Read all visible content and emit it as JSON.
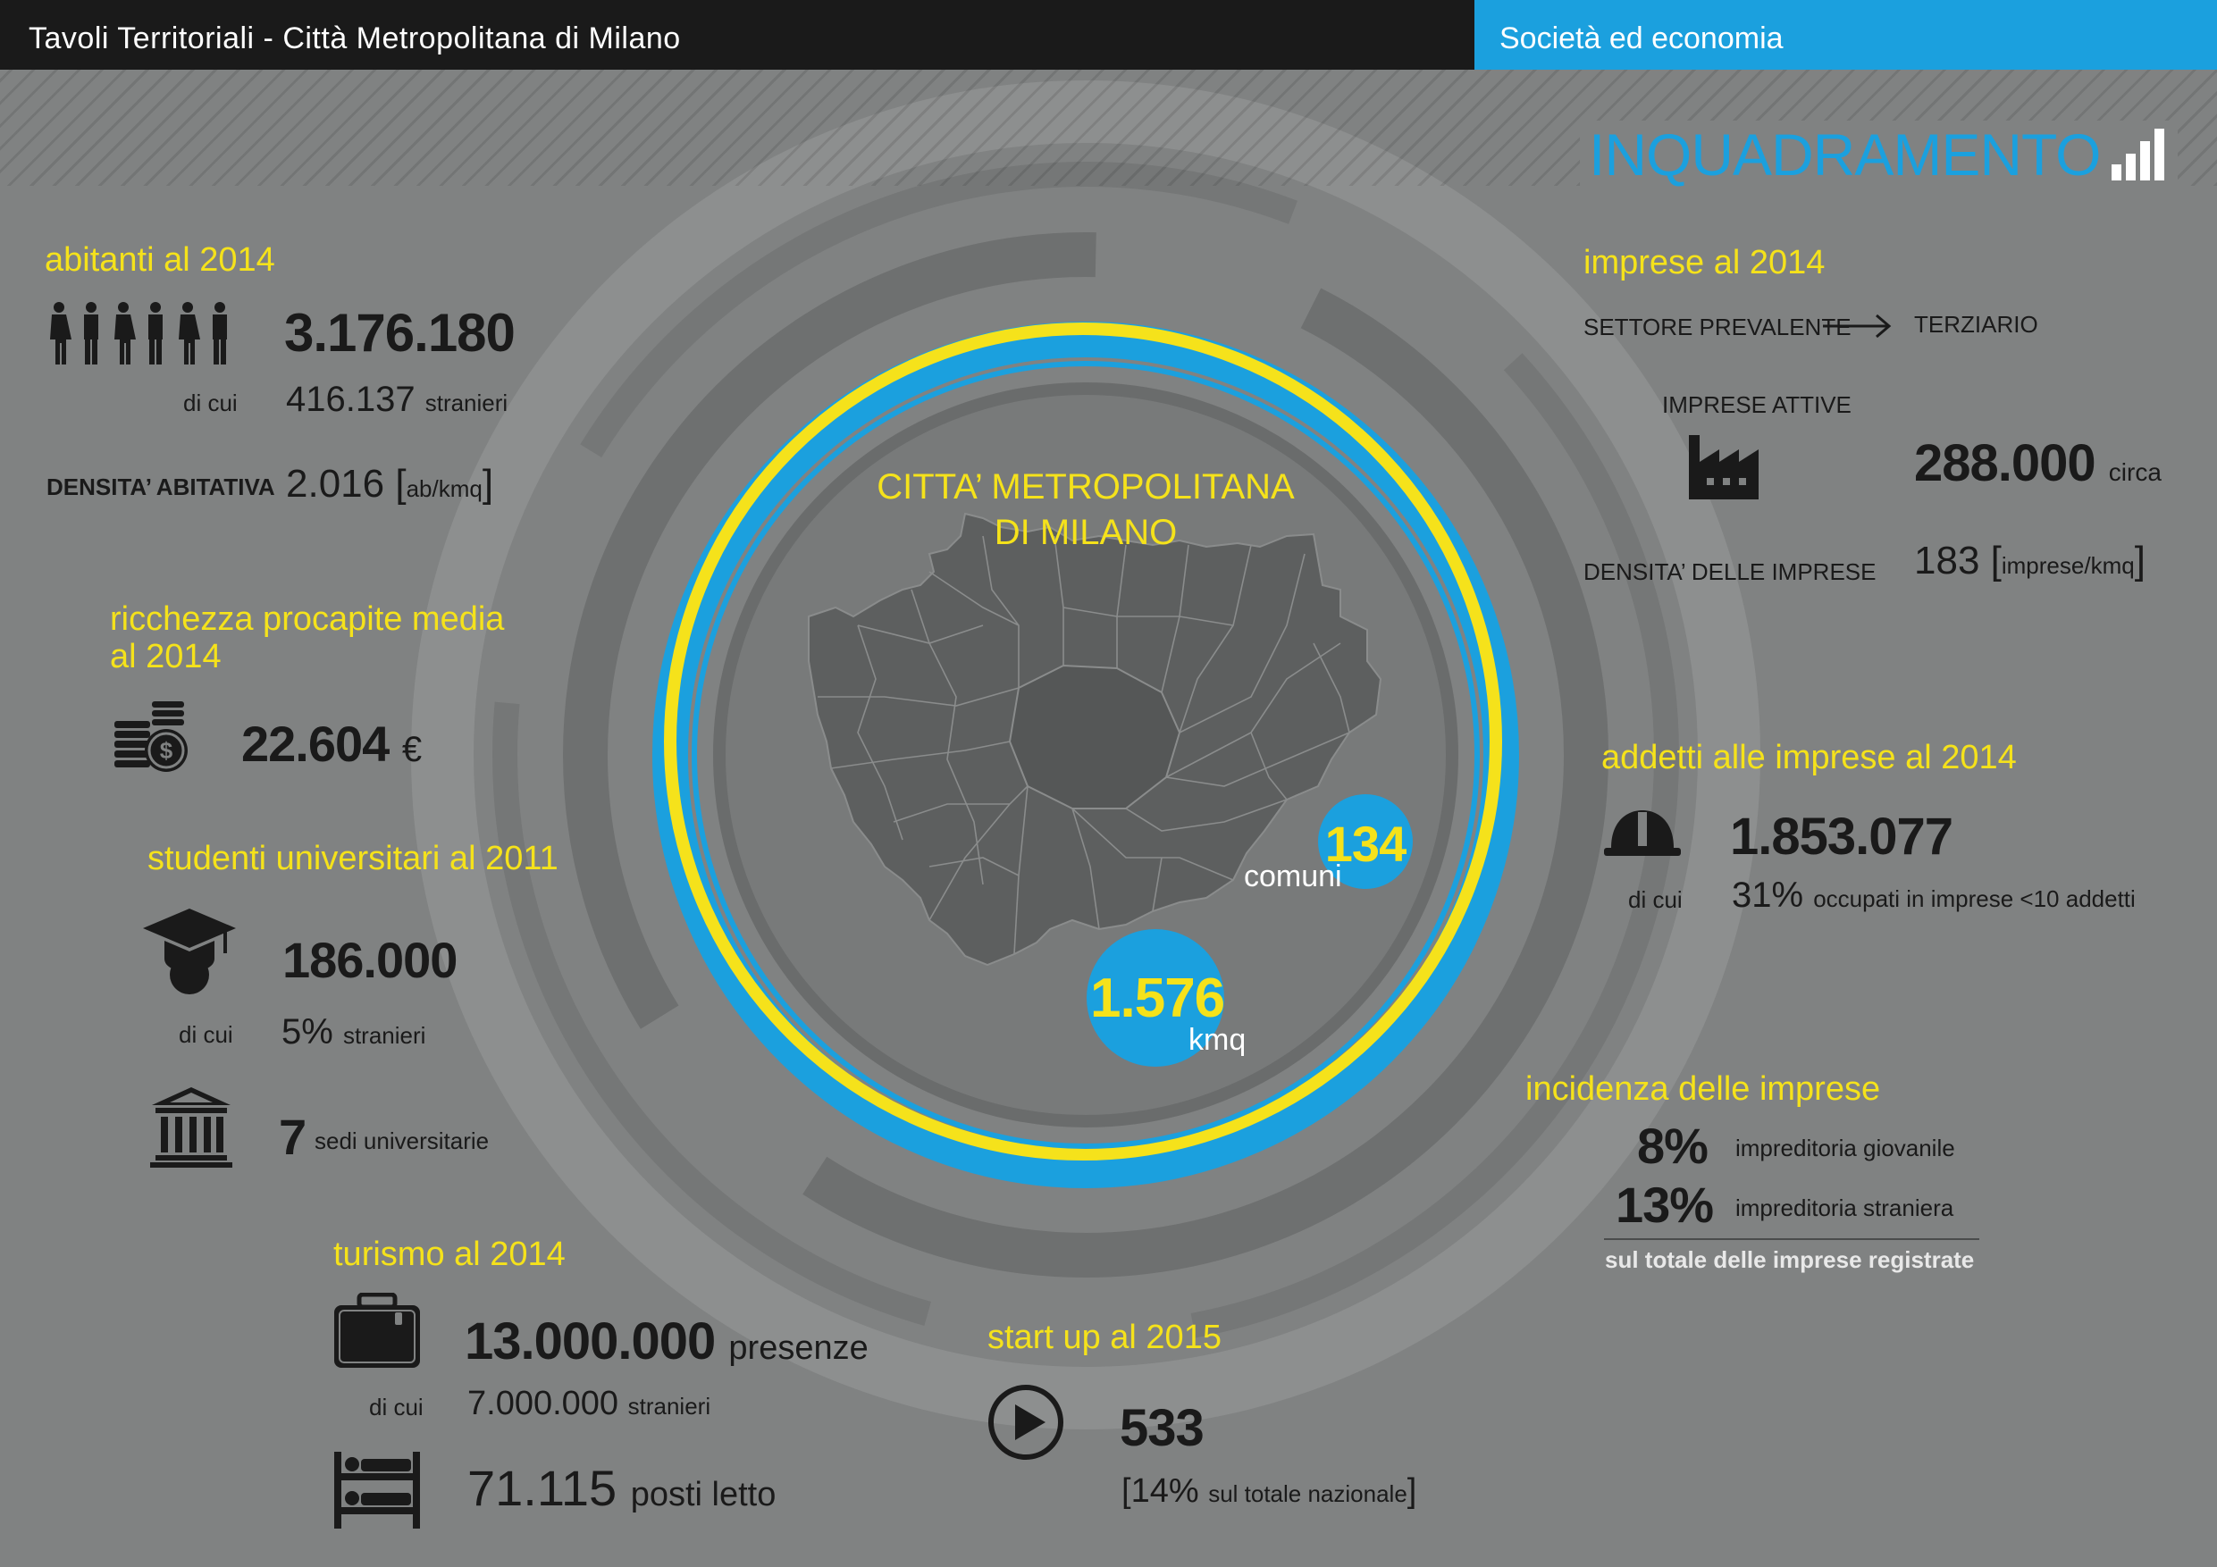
{
  "header": {
    "left_title": "Tavoli Territoriali - Città Metropolitana di Milano",
    "right_section": "Società ed economia"
  },
  "section_title": "INQUADRAMENTO",
  "center": {
    "title_line1": "CITTA’ METROPOLITANA",
    "title_line2": "DI MILANO",
    "comuni_value": "134",
    "comuni_label": "comuni",
    "kmq_value": "1.576",
    "kmq_label": "kmq"
  },
  "abitanti": {
    "title": "abitanti al 2014",
    "value": "3.176.180",
    "dicui": "di cui",
    "stranieri_value": "416.137",
    "stranieri_label": "stranieri",
    "densita_label": "DENSITA’ ABITATIVA",
    "densita_value": "2.016",
    "densita_unit": "ab/kmq"
  },
  "ricchezza": {
    "title_line1": "ricchezza procapite media",
    "title_line2": "al 2014",
    "value": "22.604",
    "unit": "€"
  },
  "studenti": {
    "title": "studenti universitari al 2011",
    "value": "186.000",
    "dicui": "di cui",
    "stranieri_value": "5%",
    "stranieri_label": "stranieri",
    "sedi_value": "7",
    "sedi_label": "sedi universitarie"
  },
  "turismo": {
    "title": "turismo al 2014",
    "presenze_value": "13.000.000",
    "presenze_label": "presenze",
    "dicui": "di cui",
    "stranieri_value": "7.000.000",
    "stranieri_label": "stranieri",
    "posti_value": "71.115",
    "posti_label": "posti letto"
  },
  "startup": {
    "title": "start up al 2015",
    "value": "533",
    "pct": "14%",
    "pct_label": "sul totale nazionale"
  },
  "imprese": {
    "title": "imprese al 2014",
    "settore_label": "SETTORE PREVALENTE",
    "settore_value": "TERZIARIO",
    "attive_label": "IMPRESE ATTIVE",
    "attive_value": "288.000",
    "attive_suffix": "circa",
    "densita_label": "DENSITA’ DELLE IMPRESE",
    "densita_value": "183",
    "densita_unit": "imprese/kmq"
  },
  "addetti": {
    "title": "addetti alle imprese al 2014",
    "value": "1.853.077",
    "dicui": "di cui",
    "pct_value": "31%",
    "pct_label": "occupati in imprese <10 addetti"
  },
  "incidenza": {
    "title": "incidenza delle imprese",
    "row1_value": "8%",
    "row1_label": "impreditoria giovanile",
    "row2_value": "13%",
    "row2_label": "impreditoria straniera",
    "footnote": "sul totale delle imprese registrate"
  },
  "colors": {
    "background": "#808282",
    "accent_blue": "#1ba0de",
    "accent_yellow": "#f5e21b",
    "dark": "#1a1a1a"
  },
  "icons": [
    "people-icon",
    "coins-icon",
    "graduation-cap-icon",
    "university-icon",
    "suitcase-icon",
    "bunk-bed-icon",
    "play-icon",
    "factory-icon",
    "hard-hat-icon",
    "bar-chart-icon",
    "arrow-right-icon"
  ]
}
